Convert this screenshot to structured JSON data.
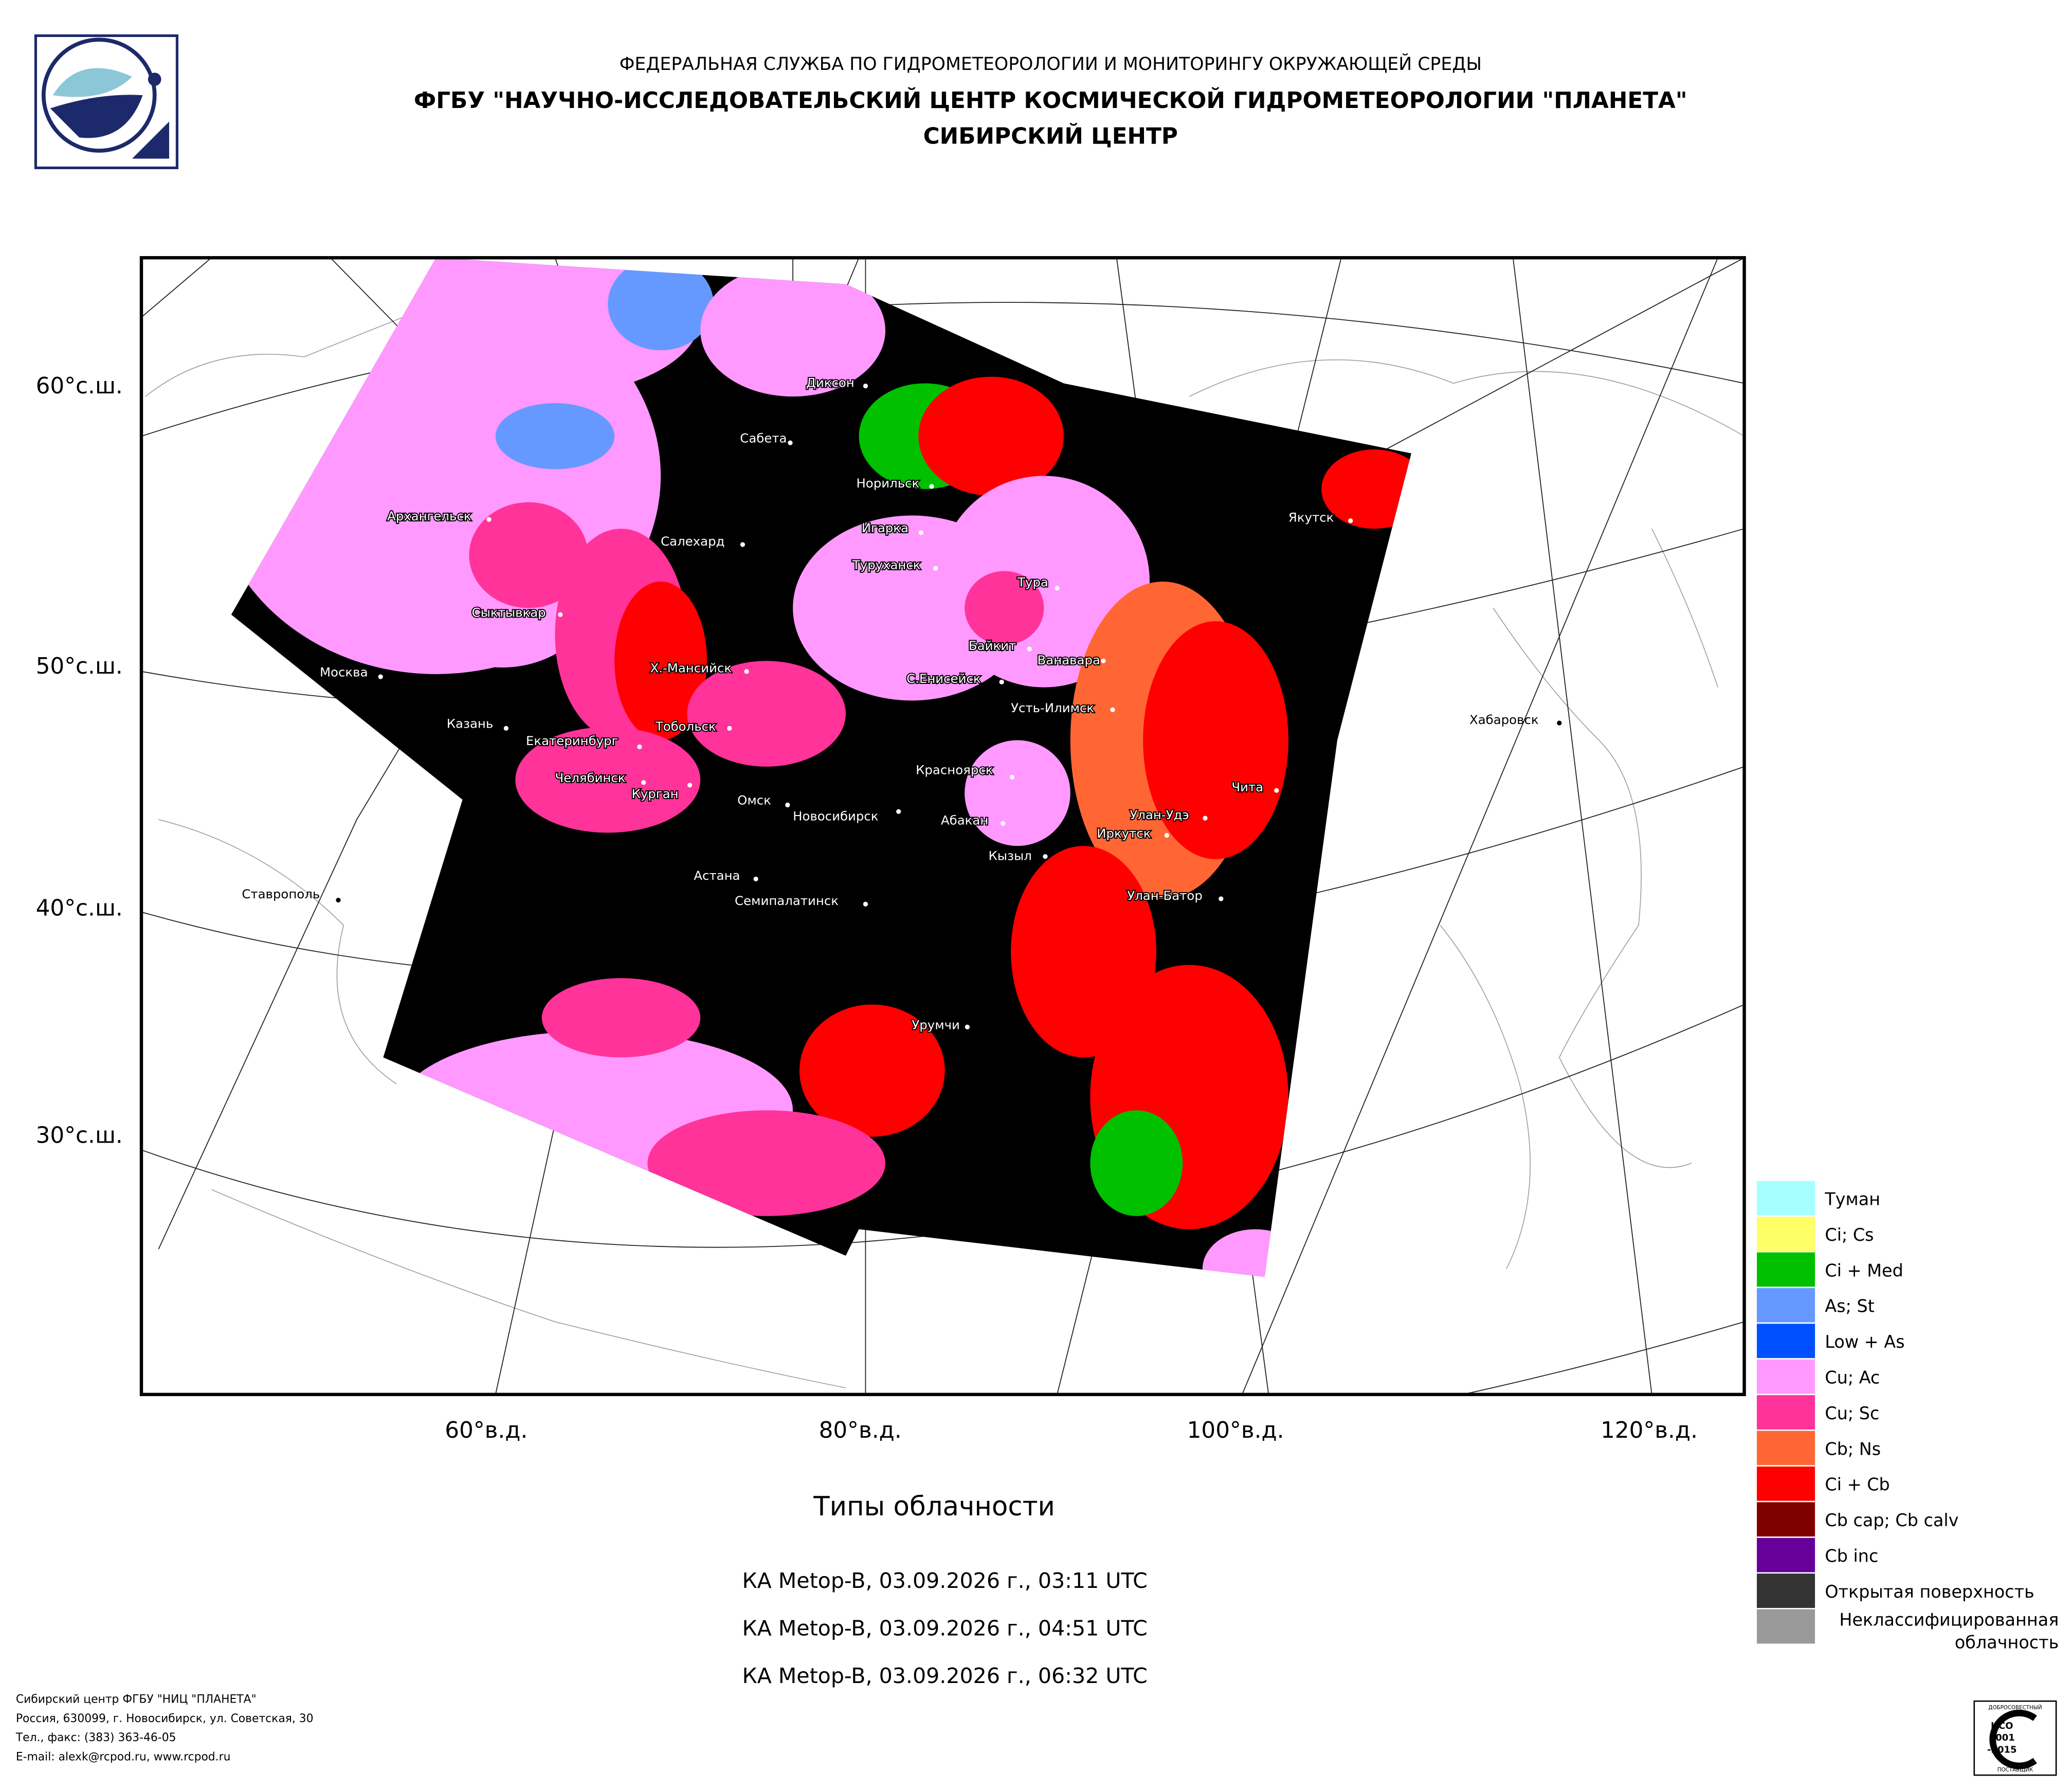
{
  "header": {
    "agency": "ФЕДЕРАЛЬНАЯ СЛУЖБА ПО ГИДРОМЕТЕОРОЛОГИИ И МОНИТОРИНГУ ОКРУЖАЮЩЕЙ СРЕДЫ",
    "center": "ФГБУ \"НАУЧНО-ИССЛЕДОВАТЕЛЬСКИЙ ЦЕНТР КОСМИЧЕСКОЙ ГИДРОМЕТЕОРОЛОГИИ \"ПЛАНЕТА\"",
    "branch": "СИБИРСКИЙ ЦЕНТР"
  },
  "map": {
    "lat_labels": [
      "60°с.ш.",
      "50°с.ш.",
      "40°с.ш.",
      "30°с.ш."
    ],
    "lon_labels": [
      "60°в.д.",
      "80°в.д.",
      "100°в.д.",
      "120°в.д."
    ],
    "cities": [
      "Диксон",
      "Сабета",
      "Норильск",
      "Игарка",
      "Туруханск",
      "Салехард",
      "Архангельск",
      "Сыктывкар",
      "Москва",
      "Казань",
      "Екатеринбург",
      "Челябинск",
      "Курган",
      "Тобольск",
      "Х.-Мансийск",
      "Омск",
      "Новосибирск",
      "Астана",
      "Семипалатинск",
      "Красноярск",
      "Абакан",
      "Кызыл",
      "Иркутск",
      "Улан-Удэ",
      "Улан-Батор",
      "Чита",
      "Усть-Илимск",
      "Ванавара",
      "Байкит",
      "С.Енисейск",
      "Тура",
      "Якутск",
      "Хабаровск",
      "Ставрополь",
      "Урумчи"
    ]
  },
  "legend": [
    {
      "label": "Туман",
      "color": "#a6ffff"
    },
    {
      "label": "Ci; Cs",
      "color": "#ffff66"
    },
    {
      "label": "Ci + Med",
      "color": "#00c000"
    },
    {
      "label": "As; St",
      "color": "#6699ff"
    },
    {
      "label": "Low + As",
      "color": "#0050ff"
    },
    {
      "label": "Cu; Ac",
      "color": "#ff99ff"
    },
    {
      "label": "Cu; Sc",
      "color": "#ff3399"
    },
    {
      "label": "Cb; Ns",
      "color": "#ff6633"
    },
    {
      "label": "Ci + Cb",
      "color": "#ff0000"
    },
    {
      "label": "Cb cap; Cb calv",
      "color": "#800000"
    },
    {
      "label": "Cb inc",
      "color": "#660099"
    },
    {
      "label": "Открытая поверхность",
      "color": "#333333"
    },
    {
      "label": "Неклассифицированная облачность",
      "color": "#999999"
    }
  ],
  "caption": {
    "title": "Типы облачности",
    "passes": [
      "КА Metop-B, 03.09.2026 г., 03:11 UTC",
      "КА Metop-B, 03.09.2026 г., 04:51 UTC",
      "КА Metop-B, 03.09.2026 г., 06:32 UTC"
    ]
  },
  "footer": [
    "Сибирский центр ФГБУ \"НИЦ \"ПЛАНЕТА\"",
    "Россия, 630099, г. Новосибирск, ул. Советская, 30",
    "Тел., факс: (383) 363-46-05",
    "E-mail: alexk@rcpod.ru, www.rcpod.ru"
  ],
  "certificate": {
    "top": "ДОБРОСОВЕСТНЫЙ",
    "iso": "ИСО",
    "number": "9001",
    "year": "-2015",
    "bottom": "ПОСТАВЩИК"
  }
}
